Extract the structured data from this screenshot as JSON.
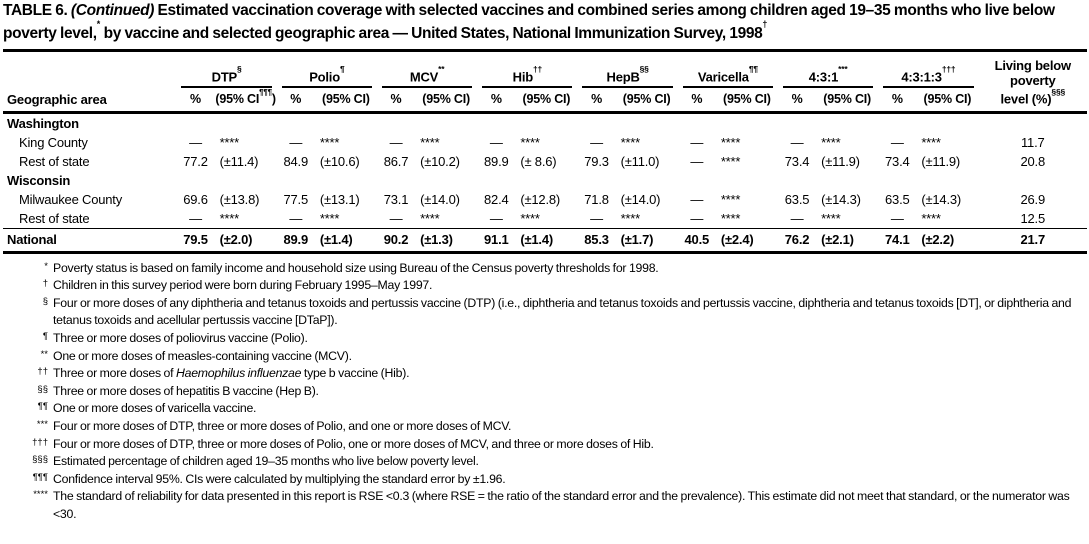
{
  "title": {
    "label": "TABLE 6.",
    "continued": "(Continued)",
    "body_1": "Estimated vaccination coverage with selected vaccines and combined series among children aged 19–35 months who live below poverty level,",
    "marker_1": "*",
    "body_2": "by vaccine and selected geographic area — United States, National Immunization Survey, 1998",
    "marker_2": "†"
  },
  "table": {
    "geo_header": "Geographic area",
    "poverty_header": {
      "lines": [
        "Living below",
        "poverty"
      ],
      "last_line": "level (%)",
      "marker": "§§§"
    },
    "groups": [
      {
        "name": "DTP",
        "marker": "§",
        "pct_label": "%",
        "ci_label": "(95% CI",
        "ci_marker": "¶¶¶",
        "ci_close": ")"
      },
      {
        "name": "Polio",
        "marker": "¶",
        "pct_label": "%",
        "ci_label": "(95% CI)"
      },
      {
        "name": "MCV",
        "marker": "**",
        "pct_label": "%",
        "ci_label": "(95% CI)"
      },
      {
        "name": "Hib",
        "marker": "††",
        "pct_label": "%",
        "ci_label": "(95% CI)"
      },
      {
        "name": "HepB",
        "marker": "§§",
        "pct_label": "%",
        "ci_label": "(95% CI)"
      },
      {
        "name": "Varicella",
        "marker": "¶¶",
        "pct_label": "%",
        "ci_label": "(95% CI)"
      },
      {
        "name": "4:3:1",
        "marker": "***",
        "pct_label": "%",
        "ci_label": "(95% CI)"
      },
      {
        "name": "4:3:1:3",
        "marker": "†††",
        "pct_label": "%",
        "ci_label": "(95% CI)"
      }
    ],
    "rows": [
      {
        "type": "state",
        "label": "Washington"
      },
      {
        "type": "area",
        "indent": true,
        "label": "King County",
        "values": [
          "—",
          "****",
          "—",
          "****",
          "—",
          "****",
          "—",
          "****",
          "—",
          "****",
          "—",
          "****",
          "—",
          "****",
          "—",
          "****"
        ],
        "poverty": "11.7"
      },
      {
        "type": "area",
        "indent": true,
        "label": "Rest of state",
        "values": [
          "77.2",
          "(±11.4)",
          "84.9",
          "(±10.6)",
          "86.7",
          "(±10.2)",
          "89.9",
          "(± 8.6)",
          "79.3",
          "(±11.0)",
          "—",
          "****",
          "73.4",
          "(±11.9)",
          "73.4",
          "(±11.9)"
        ],
        "poverty": "20.8"
      },
      {
        "type": "state",
        "label": "Wisconsin"
      },
      {
        "type": "area",
        "indent": true,
        "label": "Milwaukee County",
        "values": [
          "69.6",
          "(±13.8)",
          "77.5",
          "(±13.1)",
          "73.1",
          "(±14.0)",
          "82.4",
          "(±12.8)",
          "71.8",
          "(±14.0)",
          "—",
          "****",
          "63.5",
          "(±14.3)",
          "63.5",
          "(±14.3)"
        ],
        "poverty": "26.9"
      },
      {
        "type": "area",
        "indent": true,
        "label": "Rest of state",
        "values": [
          "—",
          "****",
          "—",
          "****",
          "—",
          "****",
          "—",
          "****",
          "—",
          "****",
          "—",
          "****",
          "—",
          "****",
          "—",
          "****"
        ],
        "poverty": "12.5"
      },
      {
        "type": "national",
        "indent": false,
        "label": "National",
        "values": [
          "79.5",
          "(±2.0)",
          "89.9",
          "(±1.4)",
          "90.2",
          "(±1.3)",
          "91.1",
          "(±1.4)",
          "85.3",
          "(±1.7)",
          "40.5",
          "(±2.4)",
          "76.2",
          "(±2.1)",
          "74.1",
          "(±2.2)"
        ],
        "poverty": "21.7"
      }
    ]
  },
  "footnotes": [
    {
      "marker": "*",
      "pre": "Poverty status is based on family income and household size using Bureau of the Census poverty thresholds for 1998."
    },
    {
      "marker": "†",
      "pre": "Children in this survey period were born during February 1995–May 1997."
    },
    {
      "marker": "§",
      "pre": "Four or more doses of any diphtheria and tetanus toxoids and pertussis vaccine (DTP) (i.e., diphtheria and tetanus toxoids and pertussis vaccine, diphtheria and tetanus toxoids [DT], or diphtheria and tetanus toxoids and acellular pertussis vaccine [DTaP])."
    },
    {
      "marker": "¶",
      "pre": "Three or more doses of poliovirus vaccine (Polio)."
    },
    {
      "marker": "**",
      "pre": "One or more doses of measles-containing vaccine (MCV)."
    },
    {
      "marker": "††",
      "pre": "Three or more doses of ",
      "italic": "Haemophilus influenzae",
      "post": " type b vaccine (Hib)."
    },
    {
      "marker": "§§",
      "pre": "Three or more doses of hepatitis B vaccine (Hep B)."
    },
    {
      "marker": "¶¶",
      "pre": "One or more doses of varicella vaccine."
    },
    {
      "marker": "***",
      "pre": "Four or more doses of DTP, three or more doses of Polio, and one or more doses of MCV."
    },
    {
      "marker": "†††",
      "pre": "Four or more doses of DTP, three or more doses of Polio, one or more doses of MCV, and three or more doses of Hib."
    },
    {
      "marker": "§§§",
      "pre": "Estimated percentage of children aged 19–35 months who live below poverty level."
    },
    {
      "marker": "¶¶¶",
      "pre": "Confidence interval 95%. CIs were calculated by multiplying the standard error by ±1.96."
    },
    {
      "marker": "****",
      "pre": "The standard of reliability for data presented in this report is RSE <0.3 (where RSE = the ratio of the standard error and the prevalence). This estimate did not meet that standard, or the numerator was <30."
    }
  ]
}
